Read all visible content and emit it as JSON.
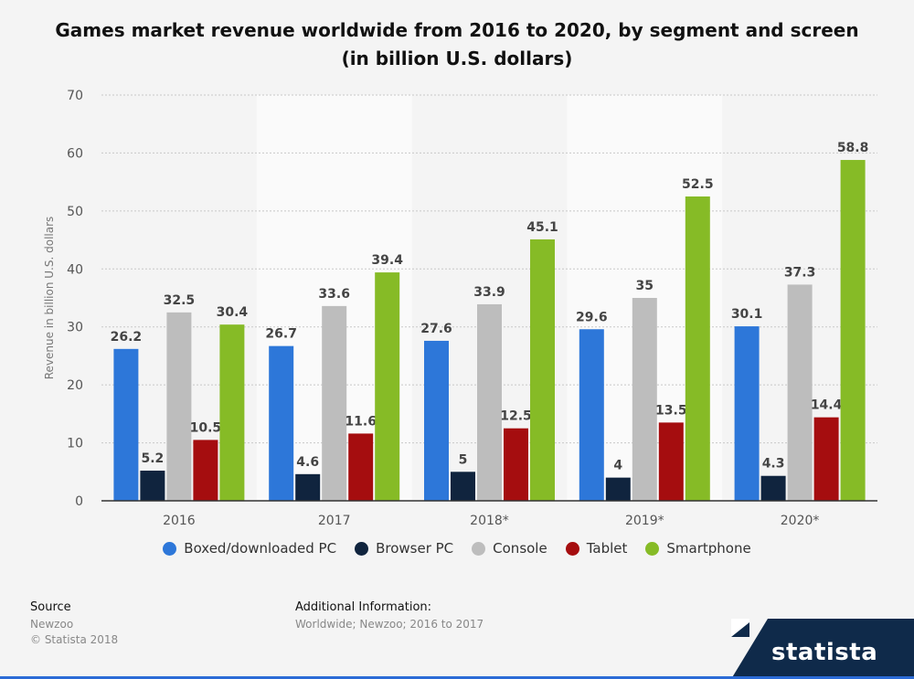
{
  "title_line1": "Games market revenue worldwide from 2016 to 2020, by segment and screen",
  "title_line2": "(in billion U.S. dollars)",
  "chart_data": {
    "type": "bar",
    "categories": [
      "2016",
      "2017",
      "2018*",
      "2019*",
      "2020*"
    ],
    "series": [
      {
        "name": "Boxed/downloaded PC",
        "color": "#2d77d9",
        "values": [
          26.2,
          26.7,
          27.6,
          29.6,
          30.1
        ]
      },
      {
        "name": "Browser PC",
        "color": "#10243e",
        "values": [
          5.2,
          4.6,
          5,
          4,
          4.3
        ]
      },
      {
        "name": "Console",
        "color": "#bdbdbd",
        "values": [
          32.5,
          33.6,
          33.9,
          35,
          37.3
        ]
      },
      {
        "name": "Tablet",
        "color": "#a50d0f",
        "values": [
          10.5,
          11.6,
          12.5,
          13.5,
          14.4
        ]
      },
      {
        "name": "Smartphone",
        "color": "#86bb26",
        "values": [
          30.4,
          39.4,
          45.1,
          52.5,
          58.8
        ]
      }
    ],
    "ylabel": "Revenue in billion U.S. dollars",
    "ylim": [
      0,
      70
    ],
    "yticks": [
      0,
      10,
      20,
      30,
      40,
      50,
      60,
      70
    ],
    "grid": true,
    "legend": "bottom"
  },
  "footer": {
    "source_heading": "Source",
    "source_text": "Newzoo",
    "copyright": "© Statista 2018",
    "addinfo_heading": "Additional Information:",
    "addinfo_text": "Worldwide; Newzoo; 2016 to 2017"
  },
  "brand": {
    "name": "statista",
    "color": "#0f2a4a"
  }
}
